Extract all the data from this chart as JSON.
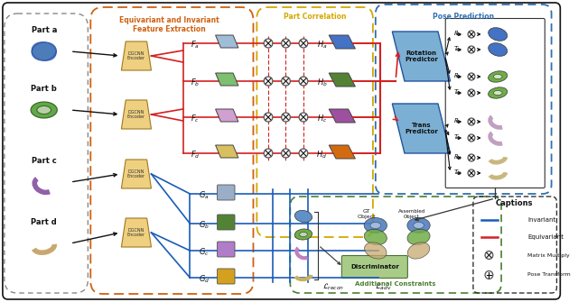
{
  "inv_color": "#1A5CB8",
  "eq_color": "#D42020",
  "orange_border": "#D06010",
  "yellow_border": "#D4A800",
  "blue_border": "#3070B0",
  "green_border": "#4A8030",
  "encoder_color": "#EED080",
  "encoder_edge": "#A07820",
  "rot_color": "#7BAFD4",
  "rot_edge": "#2255A0",
  "disc_color": "#A8CC88",
  "disc_edge": "#4A7030",
  "bg_color": "#FFFFFF",
  "parts": [
    "Part a",
    "Part b",
    "Part c",
    "Part d"
  ],
  "eq_feat_labels": [
    "$F_a$",
    "$F_b$",
    "$F_c$",
    "$F_d$"
  ],
  "inv_feat_labels": [
    "$G_a$",
    "$G_b$",
    "$G_c$",
    "$G_d$"
  ],
  "H_labels": [
    "$H_a$",
    "$H_b$",
    "$H_c$",
    "$H_d$"
  ],
  "eq_feat_colors": [
    "#A0BDD8",
    "#7DC070",
    "#D0A0D0",
    "#D8C060"
  ],
  "inv_feat_colors": [
    "#9AAEC8",
    "#548235",
    "#B07DC8",
    "#D4A020"
  ],
  "H_colors": [
    "#4472C4",
    "#548235",
    "#9E4FA0",
    "#D46A10"
  ],
  "rt_part_colors": [
    "#4472C4",
    "#70AD47",
    "#C0A0C0",
    "#C8B880"
  ],
  "section_labels": {
    "feat_extract": "Equivariant and Invariant\nFeature Extraction",
    "part_corr": "Part Correlation",
    "pose_pred": "Pose Prediction",
    "add_constraints": "Additional Constraints"
  }
}
